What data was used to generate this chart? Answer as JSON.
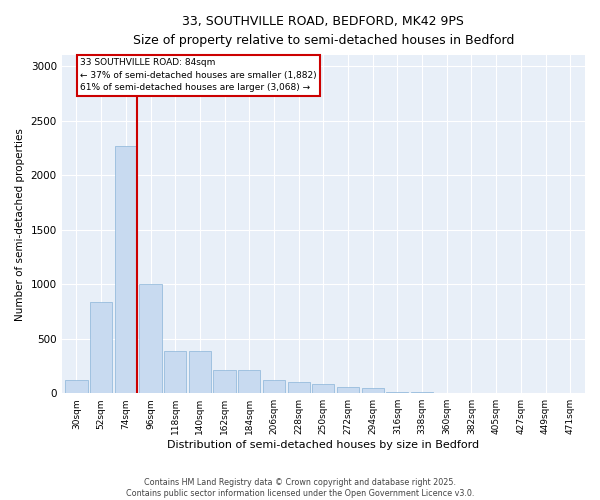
{
  "title_line1": "33, SOUTHVILLE ROAD, BEDFORD, MK42 9PS",
  "title_line2": "Size of property relative to semi-detached houses in Bedford",
  "xlabel": "Distribution of semi-detached houses by size in Bedford",
  "ylabel": "Number of semi-detached properties",
  "annotation_title": "33 SOUTHVILLE ROAD: 84sqm",
  "annotation_line2": "← 37% of semi-detached houses are smaller (1,882)",
  "annotation_line3": "61% of semi-detached houses are larger (3,068) →",
  "footnote_line1": "Contains HM Land Registry data © Crown copyright and database right 2025.",
  "footnote_line2": "Contains public sector information licensed under the Open Government Licence v3.0.",
  "bar_labels": [
    "30sqm",
    "52sqm",
    "74sqm",
    "96sqm",
    "118sqm",
    "140sqm",
    "162sqm",
    "184sqm",
    "206sqm",
    "228sqm",
    "250sqm",
    "272sqm",
    "294sqm",
    "316sqm",
    "338sqm",
    "360sqm",
    "382sqm",
    "405sqm",
    "427sqm",
    "449sqm",
    "471sqm"
  ],
  "bar_values": [
    120,
    840,
    2270,
    1000,
    390,
    390,
    215,
    215,
    120,
    105,
    80,
    60,
    45,
    15,
    8,
    5,
    3,
    2,
    1,
    1,
    0
  ],
  "bar_color": "#c8daf0",
  "bar_edge_color": "#8ab4d8",
  "red_line_index": 2,
  "red_line_color": "#cc0000",
  "annotation_box_color": "#cc0000",
  "background_color": "#e8eff8",
  "ylim": [
    0,
    3100
  ],
  "yticks": [
    0,
    500,
    1000,
    1500,
    2000,
    2500,
    3000
  ],
  "property_size": 84
}
